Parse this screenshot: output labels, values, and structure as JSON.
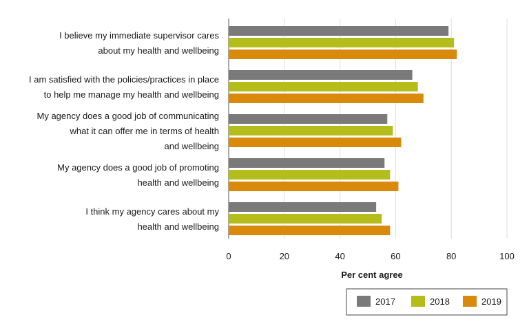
{
  "chart_data": {
    "type": "bar",
    "orientation": "horizontal",
    "categories": [
      [
        "I believe my immediate supervisor cares",
        "about my health and wellbeing"
      ],
      [
        "I am satisfied with the policies/practices in place",
        "to help me manage my health and wellbeing"
      ],
      [
        "My agency does a good job of communicating",
        "what it can offer me in terms of health",
        "and wellbeing"
      ],
      [
        "My agency does a good job of promoting",
        "health and wellbeing"
      ],
      [
        "I think my agency cares about my",
        "health and wellbeing"
      ]
    ],
    "series": [
      {
        "name": "2017",
        "color": "#7a7a7a",
        "values": [
          79,
          66,
          57,
          56,
          53
        ]
      },
      {
        "name": "2018",
        "color": "#b5bd1a",
        "values": [
          81,
          68,
          59,
          58,
          55
        ]
      },
      {
        "name": "2019",
        "color": "#d98a0b",
        "values": [
          82,
          70,
          62,
          61,
          58
        ]
      }
    ],
    "xlim": [
      0,
      100
    ],
    "xticks": [
      "0",
      "20",
      "40",
      "60",
      "80",
      "100"
    ],
    "xlabel": "Per cent agree",
    "ylabel": "",
    "grid": true,
    "legend_position": "bottom-right"
  }
}
